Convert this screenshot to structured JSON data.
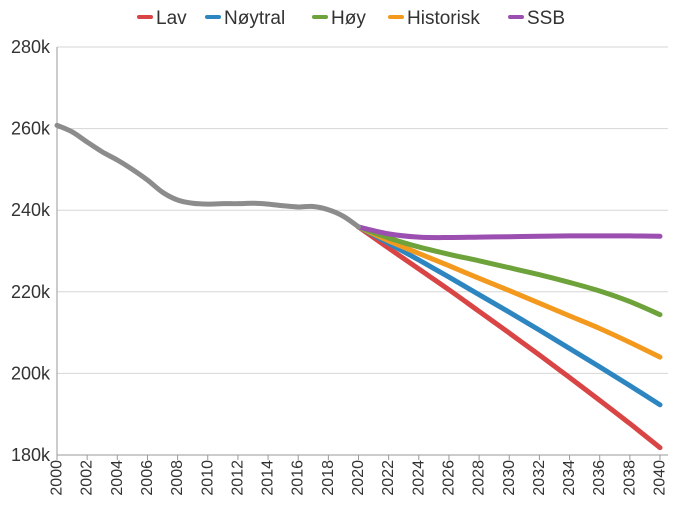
{
  "chart_data": {
    "type": "line",
    "title": "",
    "xlabel": "",
    "ylabel": "",
    "xlim": [
      2000,
      2040
    ],
    "ylim": [
      180000,
      280000
    ],
    "grid": true,
    "legend_position": "top",
    "y_ticks": [
      {
        "value": 180000,
        "label": "180k"
      },
      {
        "value": 200000,
        "label": "200k"
      },
      {
        "value": 220000,
        "label": "220k"
      },
      {
        "value": 240000,
        "label": "240k"
      },
      {
        "value": 260000,
        "label": "260k"
      },
      {
        "value": 280000,
        "label": "280k"
      }
    ],
    "x_ticks": [
      {
        "value": 2000,
        "label": "2000"
      },
      {
        "value": 2002,
        "label": "2002"
      },
      {
        "value": 2004,
        "label": "2004"
      },
      {
        "value": 2006,
        "label": "2006"
      },
      {
        "value": 2008,
        "label": "2008"
      },
      {
        "value": 2010,
        "label": "2010"
      },
      {
        "value": 2012,
        "label": "2012"
      },
      {
        "value": 2014,
        "label": "2014"
      },
      {
        "value": 2016,
        "label": "2016"
      },
      {
        "value": 2018,
        "label": "2018"
      },
      {
        "value": 2020,
        "label": "2020"
      },
      {
        "value": 2022,
        "label": "2022"
      },
      {
        "value": 2024,
        "label": "2024"
      },
      {
        "value": 2026,
        "label": "2026"
      },
      {
        "value": 2028,
        "label": "2028"
      },
      {
        "value": 2030,
        "label": "2030"
      },
      {
        "value": 2032,
        "label": "2032"
      },
      {
        "value": 2034,
        "label": "2034"
      },
      {
        "value": 2036,
        "label": "2036"
      },
      {
        "value": 2038,
        "label": "2038"
      },
      {
        "value": 2040,
        "label": "2040"
      }
    ],
    "historical": {
      "color": "#8c8c8c",
      "points": [
        [
          2000,
          260800
        ],
        [
          2001,
          259200
        ],
        [
          2002,
          256700
        ],
        [
          2003,
          254300
        ],
        [
          2004,
          252300
        ],
        [
          2005,
          250000
        ],
        [
          2006,
          247400
        ],
        [
          2007,
          244400
        ],
        [
          2008,
          242500
        ],
        [
          2009,
          241700
        ],
        [
          2010,
          241500
        ],
        [
          2011,
          241600
        ],
        [
          2012,
          241600
        ],
        [
          2013,
          241700
        ],
        [
          2014,
          241500
        ],
        [
          2015,
          241100
        ],
        [
          2016,
          240800
        ],
        [
          2017,
          240900
        ],
        [
          2018,
          240100
        ],
        [
          2019,
          238500
        ],
        [
          2020,
          235900
        ]
      ]
    },
    "series": [
      {
        "name": "Lav",
        "color": "#d94545",
        "points": [
          [
            2020,
            235900
          ],
          [
            2022,
            230700
          ],
          [
            2024,
            225600
          ],
          [
            2026,
            220500
          ],
          [
            2028,
            215200
          ],
          [
            2030,
            209900
          ],
          [
            2032,
            204500
          ],
          [
            2034,
            199000
          ],
          [
            2036,
            193400
          ],
          [
            2038,
            187700
          ],
          [
            2040,
            181800
          ]
        ]
      },
      {
        "name": "Nøytral",
        "color": "#2e86c1",
        "points": [
          [
            2020,
            235900
          ],
          [
            2022,
            231900
          ],
          [
            2024,
            227800
          ],
          [
            2026,
            223600
          ],
          [
            2028,
            219300
          ],
          [
            2030,
            215000
          ],
          [
            2032,
            210600
          ],
          [
            2034,
            206100
          ],
          [
            2036,
            201600
          ],
          [
            2038,
            197000
          ],
          [
            2040,
            192300
          ]
        ]
      },
      {
        "name": "Høy",
        "color": "#6ea33b",
        "points": [
          [
            2020,
            235900
          ],
          [
            2022,
            233200
          ],
          [
            2024,
            231000
          ],
          [
            2026,
            229200
          ],
          [
            2028,
            227600
          ],
          [
            2030,
            225900
          ],
          [
            2032,
            224200
          ],
          [
            2034,
            222300
          ],
          [
            2036,
            220200
          ],
          [
            2038,
            217600
          ],
          [
            2040,
            214400
          ]
        ]
      },
      {
        "name": "Historisk",
        "color": "#f39a1e",
        "points": [
          [
            2020,
            235900
          ],
          [
            2022,
            232500
          ],
          [
            2024,
            229400
          ],
          [
            2026,
            226400
          ],
          [
            2028,
            223300
          ],
          [
            2030,
            220300
          ],
          [
            2032,
            217200
          ],
          [
            2034,
            214100
          ],
          [
            2036,
            211000
          ],
          [
            2038,
            207600
          ],
          [
            2040,
            204000
          ]
        ]
      },
      {
        "name": "SSB",
        "color": "#9b4fb0",
        "points": [
          [
            2020,
            235900
          ],
          [
            2022,
            234200
          ],
          [
            2024,
            233400
          ],
          [
            2026,
            233300
          ],
          [
            2028,
            233400
          ],
          [
            2030,
            233500
          ],
          [
            2032,
            233600
          ],
          [
            2034,
            233700
          ],
          [
            2036,
            233700
          ],
          [
            2038,
            233700
          ],
          [
            2040,
            233600
          ]
        ]
      }
    ]
  }
}
